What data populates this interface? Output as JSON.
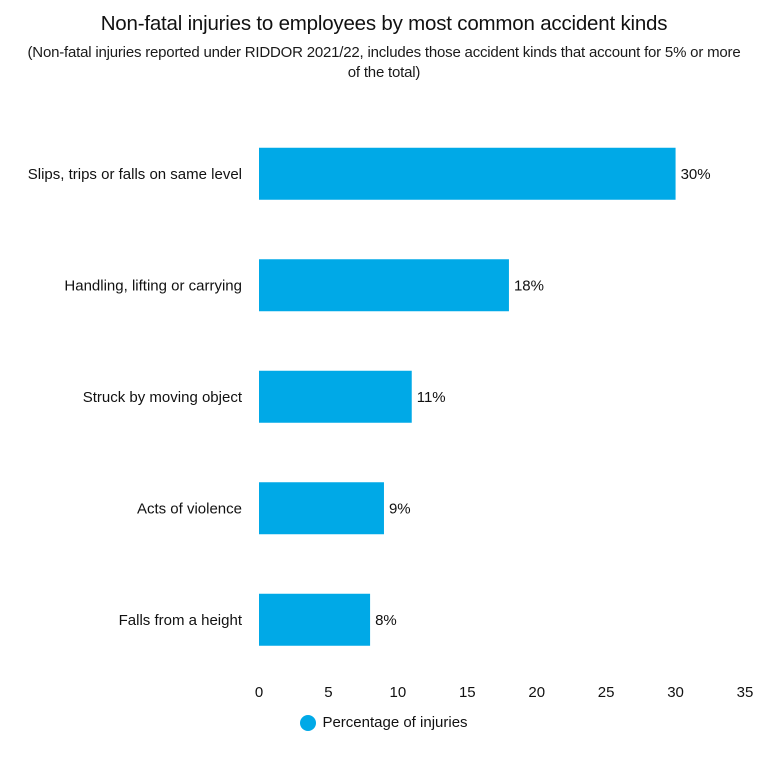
{
  "title": "Non-fatal injuries to employees by most common accident kinds",
  "subtitle": "(Non-fatal injuries reported under RIDDOR 2021/22, includes those accident kinds that account for 5% or more of the total)",
  "legend": {
    "label": "Percentage of injuries",
    "color": "#00A9E7",
    "placement": "bottom"
  },
  "chart_data": {
    "type": "bar",
    "orientation": "horizontal",
    "title": "Non-fatal injuries to employees by most common accident kinds",
    "subtitle": "(Non-fatal injuries reported under RIDDOR 2021/22, includes those accident kinds that account for 5% or more of the total)",
    "categories": [
      "Slips, trips or falls on same level",
      "Handling, lifting or carrying",
      "Struck by moving object",
      "Acts of violence",
      "Falls from a height"
    ],
    "series": [
      {
        "name": "Percentage of injuries",
        "values": [
          30,
          18,
          11,
          9,
          8
        ],
        "labels": [
          "30%",
          "18%",
          "11%",
          "9%",
          "8%"
        ],
        "color": "#00A9E7"
      }
    ],
    "xlim": [
      0,
      35
    ],
    "xticks": [
      0,
      5,
      10,
      15,
      20,
      25,
      30,
      35
    ],
    "xlabel": "",
    "ylabel": "",
    "grid": false
  }
}
